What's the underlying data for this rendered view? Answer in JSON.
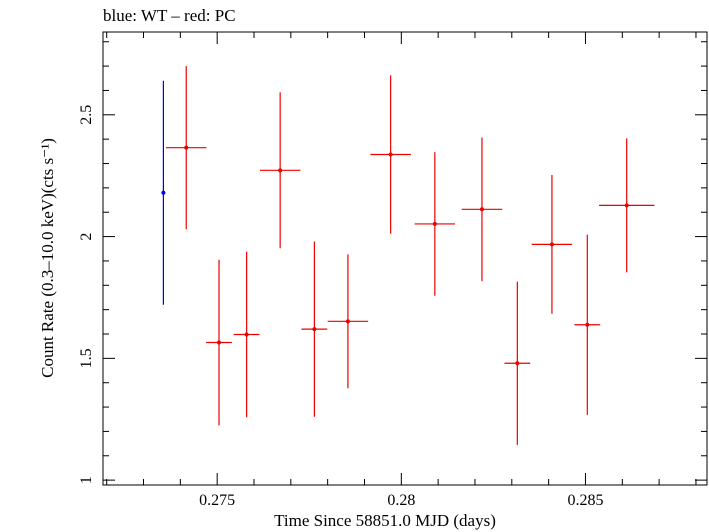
{
  "chart_data": {
    "type": "scatter",
    "title": "blue: WT – red: PC",
    "xlabel": "Time Since 58851.0 MJD (days)",
    "ylabel": "Count Rate (0.3–10.0 keV)(cts s⁻¹)",
    "xlim": [
      0.2719,
      0.2883
    ],
    "ylim": [
      0.98,
      2.84
    ],
    "x_ticks": [
      0.275,
      0.28,
      0.285
    ],
    "x_tick_labels": [
      "0.275",
      "0.28",
      "0.285"
    ],
    "y_ticks": [
      1,
      1.5,
      2,
      2.5
    ],
    "y_tick_labels": [
      "1",
      "1.5",
      "2",
      "2.5"
    ],
    "grid": false,
    "series": [
      {
        "name": "WT",
        "color": "#0000ee",
        "points": [
          {
            "x": 0.27354,
            "xerr": 5e-05,
            "y": 2.18,
            "yerr_low": 0.46,
            "yerr_high": 0.46
          }
        ]
      },
      {
        "name": "PC",
        "color": "#ee0000",
        "points": [
          {
            "x": 0.27416,
            "xerr": 0.00055,
            "y": 2.365,
            "yerr_low": 0.335,
            "yerr_high": 0.335
          },
          {
            "x": 0.27505,
            "xerr": 0.00035,
            "y": 1.565,
            "yerr_low": 0.34,
            "yerr_high": 0.34
          },
          {
            "x": 0.2758,
            "xerr": 0.00035,
            "y": 1.598,
            "yerr_low": 0.34,
            "yerr_high": 0.34
          },
          {
            "x": 0.27671,
            "xerr": 0.00055,
            "y": 2.272,
            "yerr_low": 0.32,
            "yerr_high": 0.32
          },
          {
            "x": 0.27764,
            "xerr": 0.00035,
            "y": 1.62,
            "yerr_low": 0.36,
            "yerr_high": 0.36
          },
          {
            "x": 0.27855,
            "xerr": 0.00055,
            "y": 1.652,
            "yerr_low": 0.275,
            "yerr_high": 0.275
          },
          {
            "x": 0.27971,
            "xerr": 0.00055,
            "y": 2.337,
            "yerr_low": 0.325,
            "yerr_high": 0.325
          },
          {
            "x": 0.28091,
            "xerr": 0.00055,
            "y": 2.052,
            "yerr_low": 0.295,
            "yerr_high": 0.295
          },
          {
            "x": 0.28219,
            "xerr": 0.00055,
            "y": 2.112,
            "yerr_low": 0.295,
            "yerr_high": 0.295
          },
          {
            "x": 0.28315,
            "xerr": 0.00035,
            "y": 1.48,
            "yerr_low": 0.335,
            "yerr_high": 0.335
          },
          {
            "x": 0.28409,
            "xerr": 0.00055,
            "y": 1.968,
            "yerr_low": 0.285,
            "yerr_high": 0.285
          },
          {
            "x": 0.28505,
            "xerr": 0.00035,
            "y": 1.638,
            "yerr_low": 0.37,
            "yerr_high": 0.37
          },
          {
            "x": 0.28612,
            "xerr": 0.00075,
            "y": 2.128,
            "yerr_low": 0.275,
            "yerr_high": 0.275
          }
        ]
      }
    ]
  }
}
